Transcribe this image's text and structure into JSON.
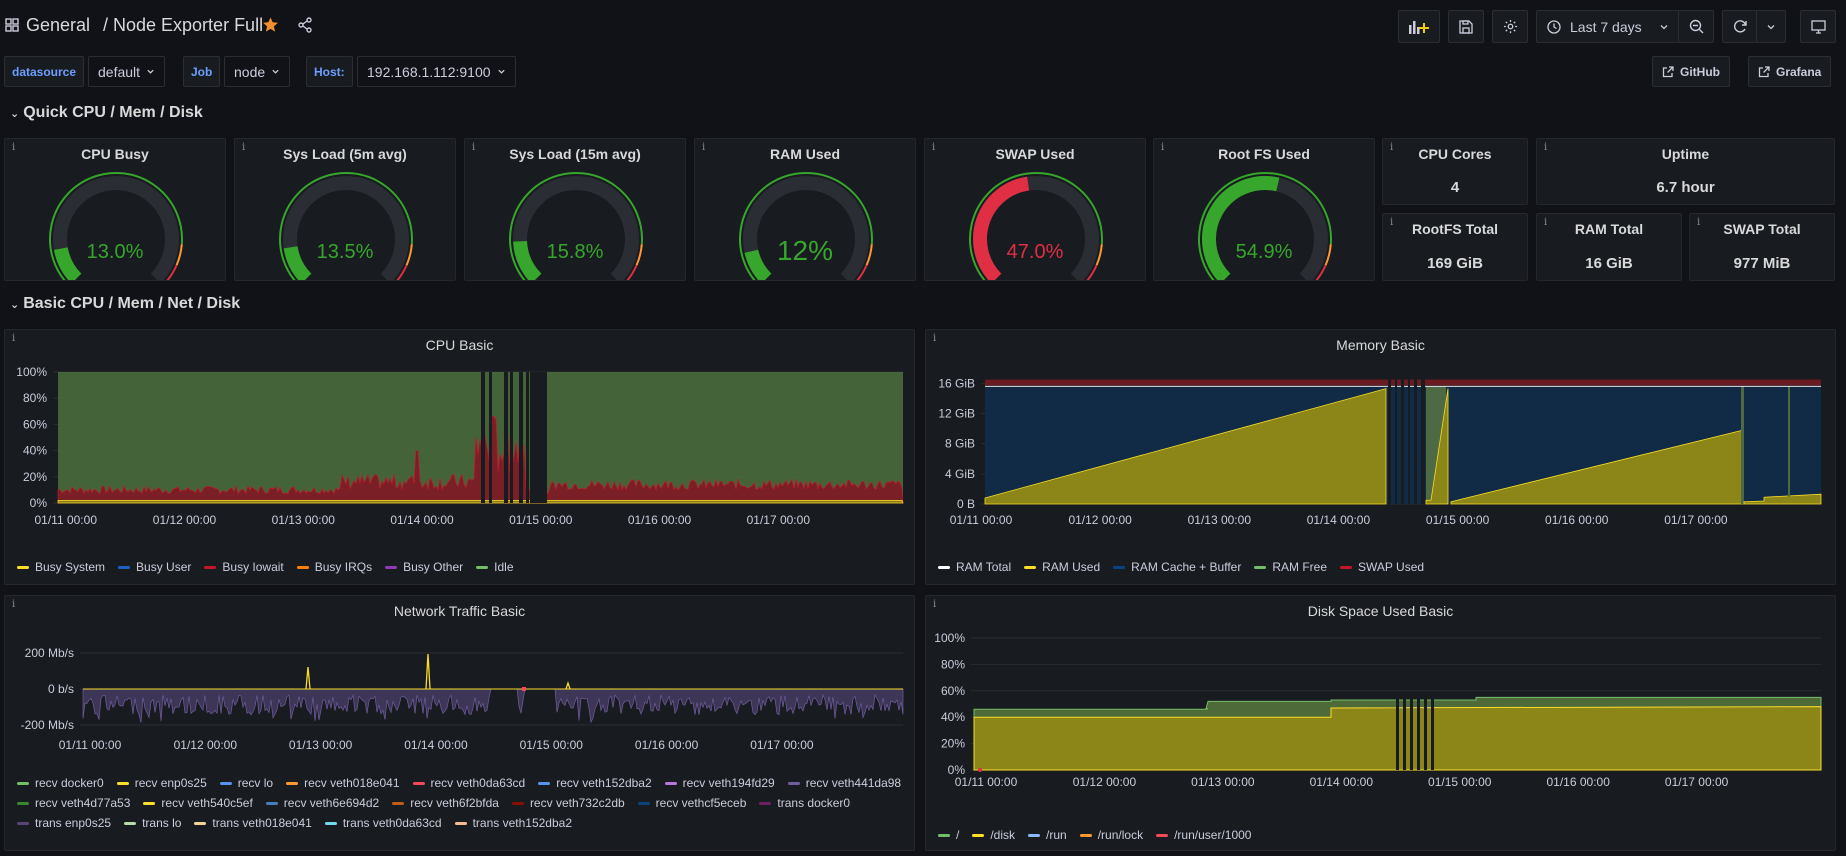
{
  "header": {
    "breadcrumb_root": "General",
    "breadcrumb_title": "/ Node Exporter Full",
    "time_range": "Last 7 days"
  },
  "variables": {
    "datasource_label": "datasource",
    "datasource_value": "default",
    "job_label": "Job",
    "job_value": "node",
    "host_label": "Host:",
    "host_value": "192.168.1.112:9100",
    "github_link": "GitHub",
    "grafana_link": "Grafana"
  },
  "rows": {
    "quick": "Quick CPU / Mem / Disk",
    "basic": "Basic CPU / Mem / Net / Disk"
  },
  "gauges": [
    {
      "title": "CPU Busy",
      "value": "13.0%",
      "level": 0.13,
      "color": "#37a62c"
    },
    {
      "title": "Sys Load (5m avg)",
      "value": "13.5%",
      "level": 0.135,
      "color": "#37a62c"
    },
    {
      "title": "Sys Load (15m avg)",
      "value": "15.8%",
      "level": 0.158,
      "color": "#37a62c"
    },
    {
      "title": "RAM Used",
      "value": "12%",
      "level": 0.12,
      "color": "#37a62c"
    },
    {
      "title": "SWAP Used",
      "value": "47.0%",
      "level": 0.47,
      "color": "#e02f44"
    },
    {
      "title": "Root FS Used",
      "value": "54.9%",
      "level": 0.549,
      "color": "#37a62c"
    }
  ],
  "stats": {
    "cpu_cores": {
      "title": "CPU Cores",
      "value": "4"
    },
    "uptime": {
      "title": "Uptime",
      "value": "6.7 hour"
    },
    "rootfs_total": {
      "title": "RootFS Total",
      "value": "169 GiB"
    },
    "ram_total": {
      "title": "RAM Total",
      "value": "16 GiB"
    },
    "swap_total": {
      "title": "SWAP Total",
      "value": "977 MiB"
    }
  },
  "time_ticks": [
    "01/11 00:00",
    "01/12 00:00",
    "01/13 00:00",
    "01/14 00:00",
    "01/15 00:00",
    "01/16 00:00",
    "01/17 00:00"
  ],
  "cpu_basic": {
    "title": "CPU Basic",
    "y_ticks": [
      "100%",
      "80%",
      "60%",
      "40%",
      "20%",
      "0%"
    ],
    "legend": [
      {
        "label": "Busy System",
        "color": "#fade2a"
      },
      {
        "label": "Busy User",
        "color": "#1f60c4"
      },
      {
        "label": "Busy Iowait",
        "color": "#c4162a"
      },
      {
        "label": "Busy IRQs",
        "color": "#ff7f0e"
      },
      {
        "label": "Busy Other",
        "color": "#8f3bb8"
      },
      {
        "label": "Idle",
        "color": "#73bf69"
      }
    ]
  },
  "memory_basic": {
    "title": "Memory Basic",
    "y_ticks": [
      "16 GiB",
      "12 GiB",
      "8 GiB",
      "4 GiB",
      "0 B"
    ],
    "legend": [
      {
        "label": "RAM Total",
        "color": "#ffffff"
      },
      {
        "label": "RAM Used",
        "color": "#fade2a"
      },
      {
        "label": "RAM Cache + Buffer",
        "color": "#0a437c"
      },
      {
        "label": "RAM Free",
        "color": "#73bf69"
      },
      {
        "label": "SWAP Used",
        "color": "#c4162a"
      }
    ]
  },
  "network_basic": {
    "title": "Network Traffic Basic",
    "y_ticks": [
      "200 Mb/s",
      "0 b/s",
      "-200 Mb/s"
    ],
    "legend": [
      {
        "label": "recv docker0",
        "color": "#73bf69"
      },
      {
        "label": "recv enp0s25",
        "color": "#fade2a"
      },
      {
        "label": "recv lo",
        "color": "#5794f2"
      },
      {
        "label": "recv veth018e041",
        "color": "#ff9830"
      },
      {
        "label": "recv veth0da63cd",
        "color": "#f2495c"
      },
      {
        "label": "recv veth152dba2",
        "color": "#5794f2"
      },
      {
        "label": "recv veth194fd29",
        "color": "#b877d9"
      },
      {
        "label": "recv veth441da98",
        "color": "#705da0"
      },
      {
        "label": "recv veth4d77a53",
        "color": "#37872d"
      },
      {
        "label": "recv veth540c5ef",
        "color": "#fade2a"
      },
      {
        "label": "recv veth6e694d2",
        "color": "#447ebc"
      },
      {
        "label": "recv veth6f2bfda",
        "color": "#c15c17"
      },
      {
        "label": "recv veth732c2db",
        "color": "#890f02"
      },
      {
        "label": "recv vethcf5eceb",
        "color": "#0a437c"
      },
      {
        "label": "trans docker0",
        "color": "#6d1f62"
      },
      {
        "label": "trans enp0s25",
        "color": "#584477"
      },
      {
        "label": "trans lo",
        "color": "#b7dbab"
      },
      {
        "label": "trans veth018e041",
        "color": "#f4d598"
      },
      {
        "label": "trans veth0da63cd",
        "color": "#70dbed"
      },
      {
        "label": "trans veth152dba2",
        "color": "#f9ba8f"
      }
    ]
  },
  "disk_basic": {
    "title": "Disk Space Used Basic",
    "y_ticks": [
      "100%",
      "80%",
      "60%",
      "40%",
      "20%",
      "0%"
    ],
    "legend": [
      {
        "label": "/",
        "color": "#73bf69"
      },
      {
        "label": "/disk",
        "color": "#fade2a"
      },
      {
        "label": "/run",
        "color": "#8ab8ff"
      },
      {
        "label": "/run/lock",
        "color": "#ff9830"
      },
      {
        "label": "/run/user/1000",
        "color": "#f2495c"
      }
    ]
  }
}
